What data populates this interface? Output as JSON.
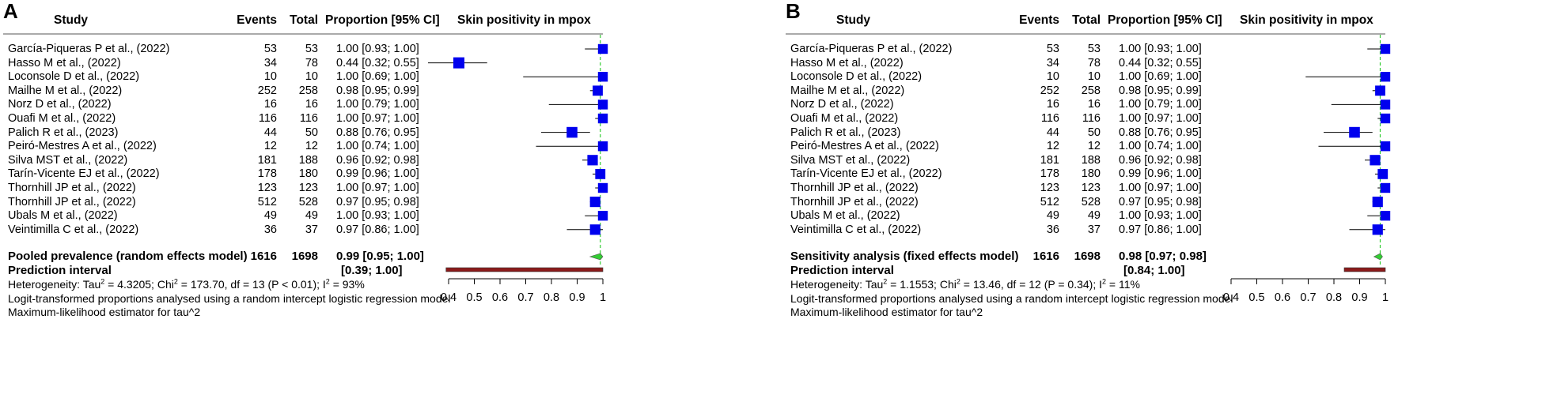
{
  "chart_data": [
    {
      "type": "forest",
      "panel_label": "A",
      "title": "Skin positivity in mpox",
      "headers": {
        "study": "Study",
        "events": "Events",
        "total": "Total",
        "ci": "Proportion [95% CI]",
        "plot": "Skin positivity in mpox"
      },
      "rows": [
        {
          "study": "García-Piqueras P et al., (2022)",
          "events": "53",
          "total": "53",
          "ci": "1.00 [0.93; 1.00]",
          "est": 1.0,
          "lo": 0.93,
          "hi": 1.0,
          "w": 0.55
        },
        {
          "study": "Hasso M et al., (2022)",
          "events": "34",
          "total": "78",
          "ci": "0.44 [0.32; 0.55]",
          "est": 0.44,
          "lo": 0.32,
          "hi": 0.55,
          "w": 0.75
        },
        {
          "study": "Loconsole D et al., (2022)",
          "events": "10",
          "total": "10",
          "ci": "1.00 [0.69; 1.00]",
          "est": 1.0,
          "lo": 0.69,
          "hi": 1.0,
          "w": 0.55
        },
        {
          "study": "Mailhe M et al., (2022)",
          "events": "252",
          "total": "258",
          "ci": "0.98 [0.95; 0.99]",
          "est": 0.98,
          "lo": 0.95,
          "hi": 0.99,
          "w": 0.6
        },
        {
          "study": "Norz D et al., (2022)",
          "events": "16",
          "total": "16",
          "ci": "1.00 [0.79; 1.00]",
          "est": 1.0,
          "lo": 0.79,
          "hi": 1.0,
          "w": 0.55
        },
        {
          "study": "Ouafi M et al., (2022)",
          "events": "116",
          "total": "116",
          "ci": "1.00 [0.97; 1.00]",
          "est": 1.0,
          "lo": 0.97,
          "hi": 1.0,
          "w": 0.55
        },
        {
          "study": "Palich R et al., (2023)",
          "events": "44",
          "total": "50",
          "ci": "0.88 [0.76; 0.95]",
          "est": 0.88,
          "lo": 0.76,
          "hi": 0.95,
          "w": 0.7
        },
        {
          "study": "Peiró-Mestres A et al., (2022)",
          "events": "12",
          "total": "12",
          "ci": "1.00 [0.74; 1.00]",
          "est": 1.0,
          "lo": 0.74,
          "hi": 1.0,
          "w": 0.55
        },
        {
          "study": "Silva MST et al., (2022)",
          "events": "181",
          "total": "188",
          "ci": "0.96 [0.92; 0.98]",
          "est": 0.96,
          "lo": 0.92,
          "hi": 0.98,
          "w": 0.65
        },
        {
          "study": "Tarín-Vicente EJ et al., (2022)",
          "events": "178",
          "total": "180",
          "ci": "0.99 [0.96; 1.00]",
          "est": 0.99,
          "lo": 0.96,
          "hi": 1.0,
          "w": 0.6
        },
        {
          "study": "Thornhill JP et al., (2022)",
          "events": "123",
          "total": "123",
          "ci": "1.00 [0.97; 1.00]",
          "est": 1.0,
          "lo": 0.97,
          "hi": 1.0,
          "w": 0.55
        },
        {
          "study": "Thornhill JP et al., (2022)",
          "events": "512",
          "total": "528",
          "ci": "0.97 [0.95; 0.98]",
          "est": 0.97,
          "lo": 0.95,
          "hi": 0.98,
          "w": 0.65
        },
        {
          "study": "Ubals M et al., (2022)",
          "events": "49",
          "total": "49",
          "ci": "1.00 [0.93; 1.00]",
          "est": 1.0,
          "lo": 0.93,
          "hi": 1.0,
          "w": 0.55
        },
        {
          "study": "Veintimilla C et al., (2022)",
          "events": "36",
          "total": "37",
          "ci": "0.97 [0.86; 1.00]",
          "est": 0.97,
          "lo": 0.86,
          "hi": 1.0,
          "w": 0.65
        }
      ],
      "pooled": {
        "label": "Pooled prevalence (random effects model)",
        "events": "1616",
        "total": "1698",
        "ci": "0.99 [0.95; 1.00]",
        "est": 0.99,
        "lo": 0.95,
        "hi": 1.0,
        "color": "#33cc33"
      },
      "prediction": {
        "label": "Prediction interval",
        "ci": "[0.39; 1.00]",
        "lo": 0.39,
        "hi": 1.0,
        "color": "#8b1a1a"
      },
      "heterogeneity": {
        "prefix": "Heterogeneity: Tau",
        "tau2": " = 4.3205; Chi",
        "chi2": " = 173.70, df = 13 (P < 0.01); I",
        "i2": " = 93%"
      },
      "footnotes": [
        "Logit-transformed proportions analysed using a random intercept logistic regression model",
        "Maximum-likelihood estimator for tau^2"
      ],
      "x_axis": {
        "range": [
          0.4,
          1.0
        ],
        "ticks": [
          0.4,
          0.5,
          0.6,
          0.7,
          0.8,
          0.9,
          1.0
        ],
        "tick_labels": [
          "0.4",
          "0.5",
          "0.6",
          "0.7",
          "0.8",
          "0.9",
          "1"
        ],
        "ref_line": 0.99
      },
      "colors": {
        "box": "#0000ee",
        "ref": "#33cc33"
      }
    },
    {
      "type": "forest",
      "panel_label": "B",
      "title": "Skin positivity in mpox",
      "headers": {
        "study": "Study",
        "events": "Events",
        "total": "Total",
        "ci": "Proportion [95% CI]",
        "plot": "Skin positivity in mpox"
      },
      "rows": [
        {
          "study": "García-Piqueras P et al., (2022)",
          "events": "53",
          "total": "53",
          "ci": "1.00 [0.93; 1.00]",
          "est": 1.0,
          "lo": 0.93,
          "hi": 1.0,
          "w": 0.55
        },
        {
          "study": "Hasso M et al., (2022)",
          "events": "34",
          "total": "78",
          "ci": "0.44 [0.32; 0.55]",
          "est": null,
          "lo": null,
          "hi": null,
          "w": 0
        },
        {
          "study": "Loconsole D et al., (2022)",
          "events": "10",
          "total": "10",
          "ci": "1.00 [0.69; 1.00]",
          "est": 1.0,
          "lo": 0.69,
          "hi": 1.0,
          "w": 0.55
        },
        {
          "study": "Mailhe M et al., (2022)",
          "events": "252",
          "total": "258",
          "ci": "0.98 [0.95; 0.99]",
          "est": 0.98,
          "lo": 0.95,
          "hi": 0.99,
          "w": 0.6
        },
        {
          "study": "Norz D et al., (2022)",
          "events": "16",
          "total": "16",
          "ci": "1.00 [0.79; 1.00]",
          "est": 1.0,
          "lo": 0.79,
          "hi": 1.0,
          "w": 0.55
        },
        {
          "study": "Ouafi M et al., (2022)",
          "events": "116",
          "total": "116",
          "ci": "1.00 [0.97; 1.00]",
          "est": 1.0,
          "lo": 0.97,
          "hi": 1.0,
          "w": 0.55
        },
        {
          "study": "Palich R et al., (2023)",
          "events": "44",
          "total": "50",
          "ci": "0.88 [0.76; 0.95]",
          "est": 0.88,
          "lo": 0.76,
          "hi": 0.95,
          "w": 0.7
        },
        {
          "study": "Peiró-Mestres A et al., (2022)",
          "events": "12",
          "total": "12",
          "ci": "1.00 [0.74; 1.00]",
          "est": 1.0,
          "lo": 0.74,
          "hi": 1.0,
          "w": 0.55
        },
        {
          "study": "Silva MST et al., (2022)",
          "events": "181",
          "total": "188",
          "ci": "0.96 [0.92; 0.98]",
          "est": 0.96,
          "lo": 0.92,
          "hi": 0.98,
          "w": 0.65
        },
        {
          "study": "Tarín-Vicente EJ et al., (2022)",
          "events": "178",
          "total": "180",
          "ci": "0.99 [0.96; 1.00]",
          "est": 0.99,
          "lo": 0.96,
          "hi": 1.0,
          "w": 0.6
        },
        {
          "study": "Thornhill JP et al., (2022)",
          "events": "123",
          "total": "123",
          "ci": "1.00 [0.97; 1.00]",
          "est": 1.0,
          "lo": 0.97,
          "hi": 1.0,
          "w": 0.55
        },
        {
          "study": "Thornhill JP et al., (2022)",
          "events": "512",
          "total": "528",
          "ci": "0.97 [0.95; 0.98]",
          "est": 0.97,
          "lo": 0.95,
          "hi": 0.98,
          "w": 0.65
        },
        {
          "study": "Ubals M et al., (2022)",
          "events": "49",
          "total": "49",
          "ci": "1.00 [0.93; 1.00]",
          "est": 1.0,
          "lo": 0.93,
          "hi": 1.0,
          "w": 0.55
        },
        {
          "study": "Veintimilla C et al., (2022)",
          "events": "36",
          "total": "37",
          "ci": "0.97 [0.86; 1.00]",
          "est": 0.97,
          "lo": 0.86,
          "hi": 1.0,
          "w": 0.65
        }
      ],
      "pooled": {
        "label": "Sensitivity analysis (fixed effects model)",
        "events": "1616",
        "total": "1698",
        "ci": "0.98 [0.97; 0.98]",
        "est": 0.98,
        "lo": 0.97,
        "hi": 0.98,
        "color": "#33cc33"
      },
      "prediction": {
        "label": "Prediction interval",
        "ci": "[0.84; 1.00]",
        "lo": 0.84,
        "hi": 1.0,
        "color": "#8b1a1a"
      },
      "heterogeneity": {
        "prefix": "Heterogeneity: Tau",
        "tau2": " = 1.1553; Chi",
        "chi2": " = 13.46, df = 12 (P = 0.34); I",
        "i2": " = 11%"
      },
      "footnotes": [
        "Logit-transformed proportions analysed using a random intercept logistic regression model",
        "Maximum-likelihood estimator for tau^2"
      ],
      "x_axis": {
        "range": [
          0.4,
          1.0
        ],
        "ticks": [
          0.4,
          0.5,
          0.6,
          0.7,
          0.8,
          0.9,
          1.0
        ],
        "tick_labels": [
          "0.4",
          "0.5",
          "0.6",
          "0.7",
          "0.8",
          "0.9",
          "1"
        ],
        "ref_line": 0.98
      },
      "colors": {
        "box": "#0000ee",
        "ref": "#33cc33"
      }
    }
  ]
}
